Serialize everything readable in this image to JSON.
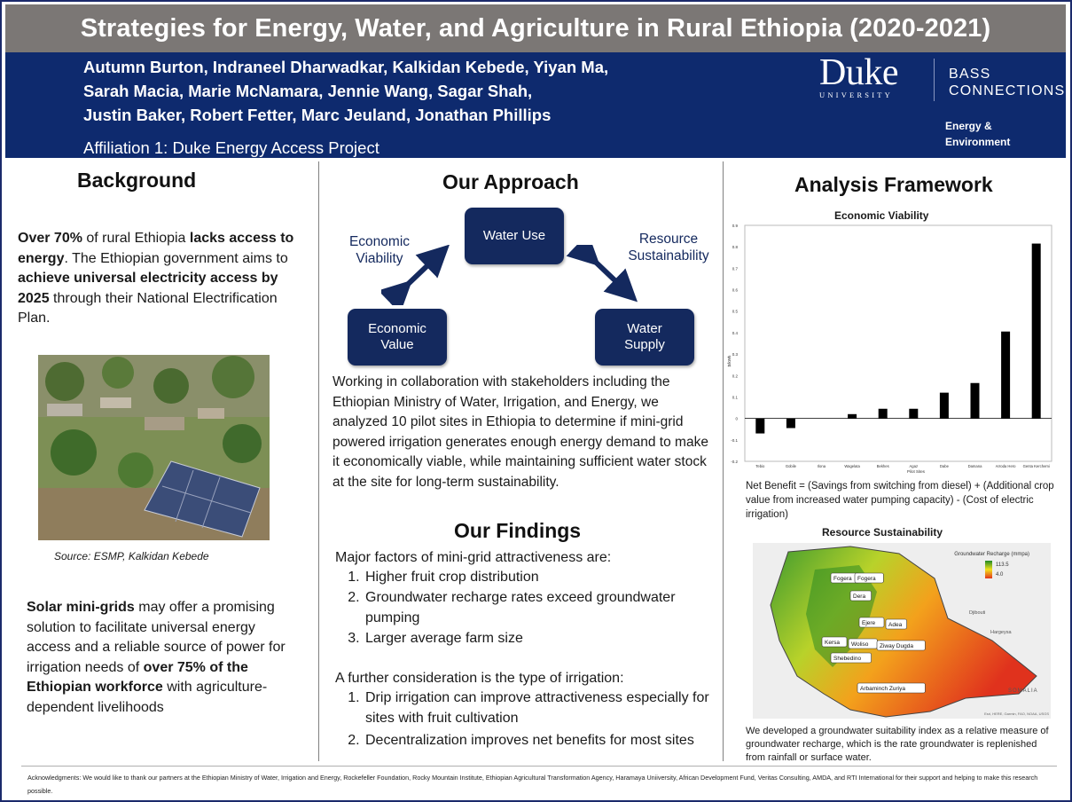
{
  "header": {
    "title": "Strategies for Energy, Water, and Agriculture in Rural Ethiopia (2020-2021)",
    "authors": [
      "Autumn Burton, Indraneel Dharwadkar, Kalkidan Kebede, Yiyan Ma,",
      "Sarah Macia, Marie McNamara, Jennie Wang, Sagar Shah,",
      "Justin Baker, Robert Fetter, Marc Jeuland, Jonathan Phillips"
    ],
    "affiliation": "Affiliation 1: Duke Energy Access Project",
    "logo_duke": "Duke",
    "logo_university": "UNIVERSITY",
    "logo_bass_1": "BASS",
    "logo_bass_2": "CONNECTIONS",
    "theme_1": "Energy &",
    "theme_2": "Environment"
  },
  "background": {
    "heading": "Background",
    "p1": {
      "s1": "Over 70%",
      "s2": " of rural Ethiopia ",
      "s3": "lacks access to energy",
      "s4": ". The Ethiopian government aims to ",
      "s5": "achieve universal electricity access by 2025",
      "s6": " through their National Electrification Plan."
    },
    "photo_caption": "Source: ESMP, Kalkidan Kebede",
    "p2": {
      "s1": "Solar mini-grids",
      "s2": " may offer a promising solution to facilitate universal energy access and a reliable source of power for irrigation needs of ",
      "s3": "over 75% of the Ethiopian workforce",
      "s4": " with agriculture-dependent livelihoods"
    }
  },
  "approach": {
    "heading": "Our Approach",
    "box_top": "Water Use",
    "box_left_1": "Economic",
    "box_left_2": "Value",
    "box_right_1": "Water",
    "box_right_2": "Supply",
    "label_left_1": "Economic",
    "label_left_2": "Viability",
    "label_right_1": "Resource",
    "label_right_2": "Sustainability",
    "text": "Working in collaboration with stakeholders including the Ethiopian Ministry of Water, Irrigation, and Energy, we analyzed 10 pilot sites in Ethiopia to determine if mini-grid powered irrigation generates enough energy demand to make it economically viable, while maintaining sufficient water stock at the site for long-term sustainability."
  },
  "findings": {
    "heading": "Our Findings",
    "intro": "Major factors of mini-grid attractiveness are:",
    "factors": [
      "Higher fruit crop distribution",
      "Groundwater recharge rates exceed groundwater pumping",
      "Larger average farm size"
    ],
    "intro2": "A further consideration is the type of irrigation:",
    "considerations": [
      "Drip irrigation can improve attractiveness especially for sites with fruit cultivation",
      "Decentralization improves net benefits for most sites"
    ]
  },
  "framework": {
    "heading": "Analysis Framework",
    "formula": "Net Benefit = (Savings from switching from diesel) + (Additional crop value from increased water pumping capacity) - (Cost of electric irrigation)",
    "map_title": "Resource Sustainability",
    "map_legend_title": "Groundwater Recharge (mmpa)",
    "map_legend_high": "113.5",
    "map_legend_low": "4.0",
    "map_sites": [
      "Fogera",
      "Fogera",
      "Dera",
      "Ejere",
      "Adea",
      "Kersa",
      "Woliso",
      "Ziway Dugda",
      "Shebedino",
      "Arbaminch Zuriya"
    ],
    "map_places": [
      "Djibouti",
      "Hargeysa",
      "SOMALIA"
    ],
    "map_credit": "Esri, HERE, Garmin, FAO, NOAA, USGS",
    "map_text": "We developed a groundwater suitability index as a relative measure of groundwater recharge, which is the rate groundwater is replenished from rainfall or surface water."
  },
  "chart_data": {
    "type": "bar",
    "title": "Economic Viability",
    "xlabel": "Pilot Sites",
    "ylabel": "$/kWh",
    "ylim": [
      -0.2,
      0.9
    ],
    "yticks": [
      -0.2,
      -0.1,
      0,
      0.1,
      0.2,
      0.3,
      0.4,
      0.5,
      0.6,
      0.7,
      0.8,
      0.9
    ],
    "categories": [
      "Tebio",
      "Gobile",
      "Ilona",
      "Wagelata",
      "Bekhes",
      "Agaz",
      "Dabe",
      "Damana",
      "Arroda Hero",
      "Genta Kerchemi"
    ],
    "values": [
      -0.07,
      -0.045,
      0,
      0.02,
      0.045,
      0.045,
      0.12,
      0.165,
      0.405,
      0.815
    ],
    "grid": false,
    "bar_color": "#000000"
  },
  "acknowledgments": "Acknowledgments: We would like to thank our partners at the Ethiopian Ministry of Water, Irrigation and Energy, Rockefeller Foundation, Rocky Mountain Institute, Ethiopian Agricultural Transformation Agency, Haramaya Uniiversity, African Development Fund,  Veritas Consulting, AMDA, and RTI International for their support and helping to make this research possible."
}
